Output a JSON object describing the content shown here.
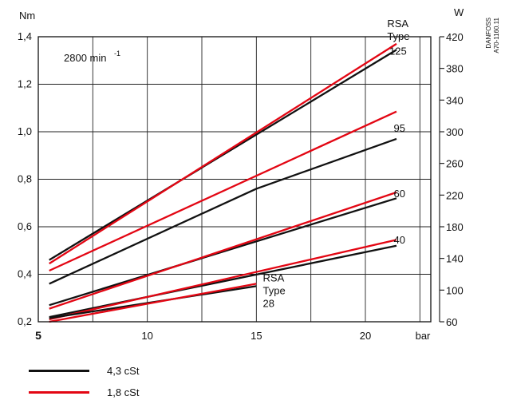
{
  "chart_data": {
    "type": "line",
    "unit_left": "Nm",
    "unit_right": "W",
    "unit_x": "bar",
    "speed_label": "2800 min",
    "speed_exponent": "-1",
    "watermark": [
      "DANFOSS",
      "A70-1160.11"
    ],
    "x_ticks": [
      "5",
      "10",
      "15",
      "20"
    ],
    "y_ticks": [
      "0,2",
      "0,4",
      "0,6",
      "0,8",
      "1,0",
      "1,2",
      "1,4"
    ],
    "y2_ticks": [
      "60",
      "100",
      "140",
      "180",
      "220",
      "260",
      "300",
      "340",
      "380",
      "420"
    ],
    "xlim": [
      5,
      23
    ],
    "ylim": [
      0.2,
      1.4
    ],
    "y2lim": [
      60,
      420
    ],
    "annotations": [
      {
        "id": "type-header-top",
        "lines": [
          "RSA",
          "Type"
        ],
        "x": 21.0,
        "y": 1.44
      },
      {
        "id": "label-125",
        "lines": [
          "125"
        ],
        "x": 21.1,
        "y": 1.325
      },
      {
        "id": "label-95",
        "lines": [
          "95"
        ],
        "x": 21.3,
        "y": 1.0
      },
      {
        "id": "label-60",
        "lines": [
          "60"
        ],
        "x": 21.3,
        "y": 0.725
      },
      {
        "id": "label-40",
        "lines": [
          "40"
        ],
        "x": 21.3,
        "y": 0.53
      },
      {
        "id": "type-28",
        "lines": [
          "RSA",
          "Type",
          "28"
        ],
        "x": 15.3,
        "y": 0.37
      }
    ],
    "legend": [
      {
        "label": "4,3 cSt",
        "color": "#111111"
      },
      {
        "label": "1,8 cSt",
        "color": "#e30613"
      }
    ],
    "series": [
      {
        "type": "125",
        "viscosity": "4,3 cSt",
        "color": "#111111",
        "x": [
          5.5,
          21
        ],
        "y": [
          0.46,
          1.345
        ]
      },
      {
        "type": "125",
        "viscosity": "1,8 cSt",
        "color": "#e30613",
        "x": [
          5.5,
          21
        ],
        "y": [
          0.445,
          1.37
        ]
      },
      {
        "type": "95",
        "viscosity": "4,3 cSt",
        "color": "#111111",
        "x": [
          5.5,
          15,
          21
        ],
        "y": [
          0.36,
          0.76,
          0.97
        ]
      },
      {
        "type": "95",
        "viscosity": "1,8 cSt",
        "color": "#e30613",
        "x": [
          5.5,
          21
        ],
        "y": [
          0.415,
          1.085
        ]
      },
      {
        "type": "60",
        "viscosity": "4,3 cSt",
        "color": "#111111",
        "x": [
          5.5,
          21
        ],
        "y": [
          0.27,
          0.72
        ]
      },
      {
        "type": "60",
        "viscosity": "1,8 cSt",
        "color": "#e30613",
        "x": [
          5.5,
          21
        ],
        "y": [
          0.255,
          0.745
        ]
      },
      {
        "type": "40",
        "viscosity": "4,3 cSt",
        "color": "#111111",
        "x": [
          5.5,
          21
        ],
        "y": [
          0.22,
          0.52
        ]
      },
      {
        "type": "40",
        "viscosity": "1,8 cSt",
        "color": "#e30613",
        "x": [
          5.5,
          21
        ],
        "y": [
          0.21,
          0.545
        ]
      },
      {
        "type": "28",
        "viscosity": "4,3 cSt",
        "color": "#111111",
        "x": [
          5.5,
          15
        ],
        "y": [
          0.215,
          0.35
        ]
      },
      {
        "type": "28",
        "viscosity": "1,8 cSt",
        "color": "#e30613",
        "x": [
          5.5,
          15
        ],
        "y": [
          0.2,
          0.36
        ]
      }
    ]
  }
}
